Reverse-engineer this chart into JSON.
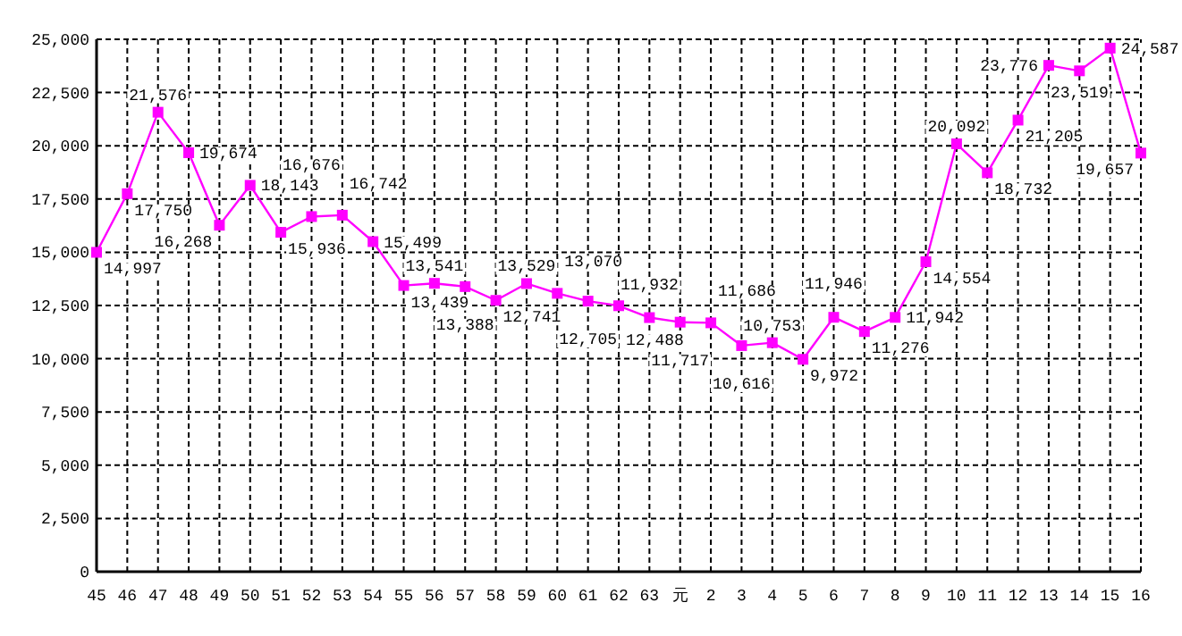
{
  "chart_data": {
    "type": "line",
    "categories": [
      "45",
      "46",
      "47",
      "48",
      "49",
      "50",
      "51",
      "52",
      "53",
      "54",
      "55",
      "56",
      "57",
      "58",
      "59",
      "60",
      "61",
      "62",
      "63",
      "元",
      "2",
      "3",
      "4",
      "5",
      "6",
      "7",
      "8",
      "9",
      "10",
      "11",
      "12",
      "13",
      "14",
      "15",
      "16"
    ],
    "series": [
      {
        "color": "#ff00ff",
        "values": [
          14997,
          17750,
          21576,
          19674,
          16268,
          18143,
          15936,
          16676,
          16742,
          15499,
          13439,
          13541,
          13388,
          12741,
          13529,
          13070,
          12705,
          12488,
          11932,
          11717,
          11686,
          10616,
          10753,
          9972,
          11946,
          11276,
          11942,
          14554,
          20092,
          18732,
          21205,
          23776,
          23519,
          24587,
          19657
        ],
        "value_labels": [
          "14,997",
          "17,750",
          "21,576",
          "19,674",
          "16,268",
          "18,143",
          "15,936",
          "16,676",
          "16,742",
          "15,499",
          "13,439",
          "13,541",
          "13,388",
          "12,741",
          "13,529",
          "13,070",
          "12,705",
          "12,488",
          "11,932",
          "11,717",
          "11,686",
          "10,616",
          "10,753",
          "9,972",
          "11,946",
          "11,276",
          "11,942",
          "14,554",
          "20,092",
          "18,732",
          "21,205",
          "23,776",
          "23,519",
          "24,587",
          "19,657"
        ]
      }
    ],
    "ylim": [
      0,
      25000
    ],
    "yticks": [
      0,
      {
        "value": 2500,
        "label": "2,500"
      },
      {
        "value": 5000,
        "label": "5,000"
      },
      {
        "value": 7500,
        "label": "7,500"
      },
      {
        "value": 10000,
        "label": "10,000"
      },
      {
        "value": 12500,
        "label": "12,500"
      },
      {
        "value": 15000,
        "label": "15,000"
      },
      {
        "value": 17500,
        "label": "17,500"
      },
      {
        "value": 20000,
        "label": "20,000"
      },
      {
        "value": 22500,
        "label": "22,500"
      },
      {
        "value": 25000,
        "label": "25,000"
      }
    ],
    "grid": true,
    "marker": "square",
    "line_style": "solid"
  }
}
